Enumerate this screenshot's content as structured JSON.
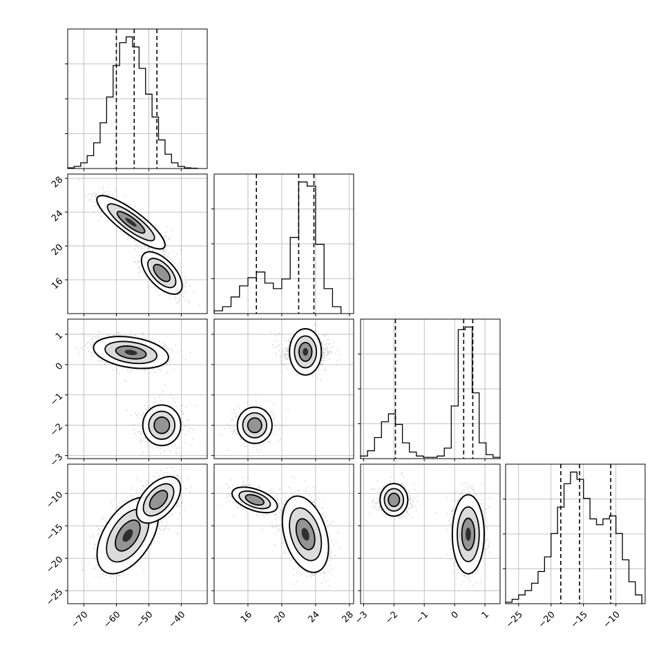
{
  "figure": {
    "background": "#ffffff"
  },
  "chart_data": {
    "type": "corner",
    "variables": [
      {
        "id": "p0",
        "range": [
          -75,
          -32
        ],
        "ticks": [
          -70,
          -60,
          -50,
          -40
        ]
      },
      {
        "id": "p1",
        "range": [
          12,
          28.5
        ],
        "ticks": [
          16,
          20,
          24,
          28
        ]
      },
      {
        "id": "p2",
        "range": [
          -3.1,
          1.5
        ],
        "ticks": [
          -3,
          -2,
          -1,
          0,
          1
        ]
      },
      {
        "id": "p3",
        "range": [
          -27,
          -5.5
        ],
        "ticks": [
          -25,
          -20,
          -15,
          -10
        ]
      }
    ],
    "quantile_lines": [
      [
        -60.0,
        -54.5,
        -47.5
      ],
      [
        17.0,
        22.0,
        23.8
      ],
      [
        -1.95,
        0.3,
        0.6
      ],
      [
        -18.5,
        -15.6,
        -10.8
      ]
    ],
    "histograms": [
      {
        "bins": [
          -75,
          -73,
          -71,
          -69,
          -67,
          -65,
          -63,
          -61,
          -59,
          -57,
          -55,
          -53,
          -51,
          -49,
          -47,
          -45,
          -43,
          -41,
          -39,
          -37,
          -35
        ],
        "heights": [
          0.5,
          1.5,
          4,
          9,
          18,
          32,
          50,
          72,
          88,
          92,
          85,
          70,
          52,
          36,
          20,
          10,
          4,
          1.5,
          0.5,
          0.2
        ]
      },
      {
        "bins": [
          12,
          13,
          14,
          15,
          16,
          17,
          18,
          19,
          20,
          21,
          22,
          23,
          24,
          25,
          26,
          27
        ],
        "heights": [
          2,
          5,
          12,
          20,
          26,
          30,
          22,
          18,
          25,
          55,
          95,
          92,
          50,
          18,
          5
        ]
      },
      {
        "bins": [
          -3.1,
          -2.87,
          -2.64,
          -2.41,
          -2.18,
          -1.95,
          -1.72,
          -1.49,
          -1.26,
          -1.03,
          -0.8,
          -0.57,
          -0.34,
          -0.11,
          0.12,
          0.35,
          0.58,
          0.81,
          1.04,
          1.27,
          1.5
        ],
        "heights": [
          2,
          6,
          16,
          28,
          34,
          26,
          12,
          5,
          2,
          1,
          1,
          2,
          8,
          40,
          98,
          100,
          50,
          12,
          3,
          1
        ]
      },
      {
        "bins": [
          -27,
          -26,
          -25,
          -24,
          -23,
          -22,
          -21,
          -20,
          -19,
          -18,
          -17,
          -16,
          -15,
          -14,
          -13,
          -12,
          -11,
          -10,
          -9,
          -8,
          -7,
          -6
        ],
        "heights": [
          1,
          3,
          6,
          9,
          14,
          22,
          32,
          48,
          66,
          82,
          90,
          85,
          72,
          58,
          54,
          58,
          60,
          48,
          30,
          15,
          6
        ]
      }
    ],
    "contour_panels": [
      {
        "x": "p0",
        "y": "p1",
        "clusters": [
          {
            "mean": [
              -55.5,
              22.8
            ],
            "sd": [
              5.0,
              1.5
            ],
            "rho": -0.85,
            "weight": 0.7
          },
          {
            "mean": [
              -46.0,
              16.8
            ],
            "sd": [
              3.5,
              1.4
            ],
            "rho": -0.6,
            "weight": 0.3
          }
        ]
      },
      {
        "x": "p0",
        "y": "p2",
        "clusters": [
          {
            "mean": [
              -55.5,
              0.4
            ],
            "sd": [
              5.5,
              0.25
            ],
            "rho": -0.3,
            "weight": 0.7
          },
          {
            "mean": [
              -46.0,
              -2.0
            ],
            "sd": [
              3.5,
              0.35
            ],
            "rho": 0.0,
            "weight": 0.3
          }
        ]
      },
      {
        "x": "p0",
        "y": "p3",
        "clusters": [
          {
            "mean": [
              -56.5,
              -16.5
            ],
            "sd": [
              4.5,
              2.8
            ],
            "rho": 0.5,
            "weight": 0.7
          },
          {
            "mean": [
              -47.0,
              -11.0
            ],
            "sd": [
              3.8,
              2.0
            ],
            "rho": 0.5,
            "weight": 0.3
          }
        ]
      },
      {
        "x": "p1",
        "y": "p2",
        "clusters": [
          {
            "mean": [
              22.8,
              0.42
            ],
            "sd": [
              1.3,
              0.25
            ],
            "rho": 0.0,
            "weight": 0.7
          },
          {
            "mean": [
              16.8,
              -2.0
            ],
            "sd": [
              1.2,
              0.32
            ],
            "rho": 0.0,
            "weight": 0.3
          }
        ]
      },
      {
        "x": "p1",
        "y": "p3",
        "clusters": [
          {
            "mean": [
              22.8,
              -16.3
            ],
            "sd": [
              1.3,
              2.8
            ],
            "rho": -0.35,
            "weight": 0.7
          },
          {
            "mean": [
              16.8,
              -11.0
            ],
            "sd": [
              1.5,
              1.1
            ],
            "rho": -0.5,
            "weight": 0.3
          }
        ]
      },
      {
        "x": "p2",
        "y": "p3",
        "clusters": [
          {
            "mean": [
              0.45,
              -16.3
            ],
            "sd": [
              0.25,
              2.9
            ],
            "rho": 0.0,
            "weight": 0.7
          },
          {
            "mean": [
              -2.0,
              -11.0
            ],
            "sd": [
              0.3,
              1.2
            ],
            "rho": 0.0,
            "weight": 0.3
          }
        ]
      }
    ],
    "grid": true
  }
}
